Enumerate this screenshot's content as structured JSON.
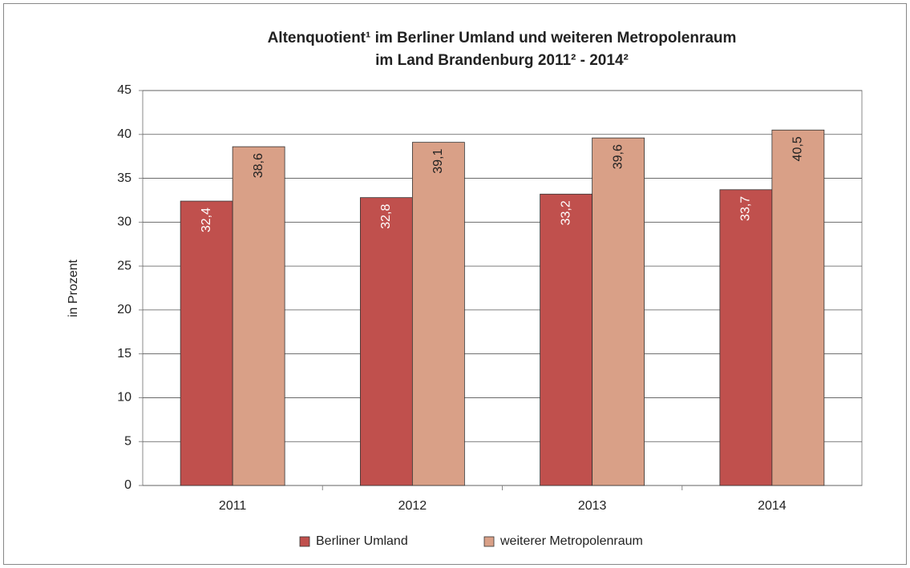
{
  "chart_data": {
    "type": "bar",
    "title": [
      "Altenquotient¹ im Berliner Umland und weiteren Metropolenraum",
      "im Land Brandenburg 2011² - 2014²"
    ],
    "y_label": "in Prozent",
    "categories": [
      "2011",
      "2012",
      "2013",
      "2014"
    ],
    "series": [
      {
        "name": "Berliner Umland",
        "color": "#c0504d",
        "values": [
          32.4,
          32.8,
          33.2,
          33.7
        ],
        "value_labels": [
          "32,4",
          "32,8",
          "33,2",
          "33,7"
        ]
      },
      {
        "name": "weiterer Metropolenraum",
        "color": "#d9a087",
        "values": [
          38.6,
          39.1,
          39.6,
          40.5
        ],
        "value_labels": [
          "38,6",
          "39,1",
          "39,6",
          "40,5"
        ]
      }
    ],
    "ylim": [
      0,
      45
    ],
    "yticks": [
      0,
      5,
      10,
      15,
      20,
      25,
      30,
      35,
      40,
      45
    ],
    "grid": true,
    "legend": "bottom"
  }
}
